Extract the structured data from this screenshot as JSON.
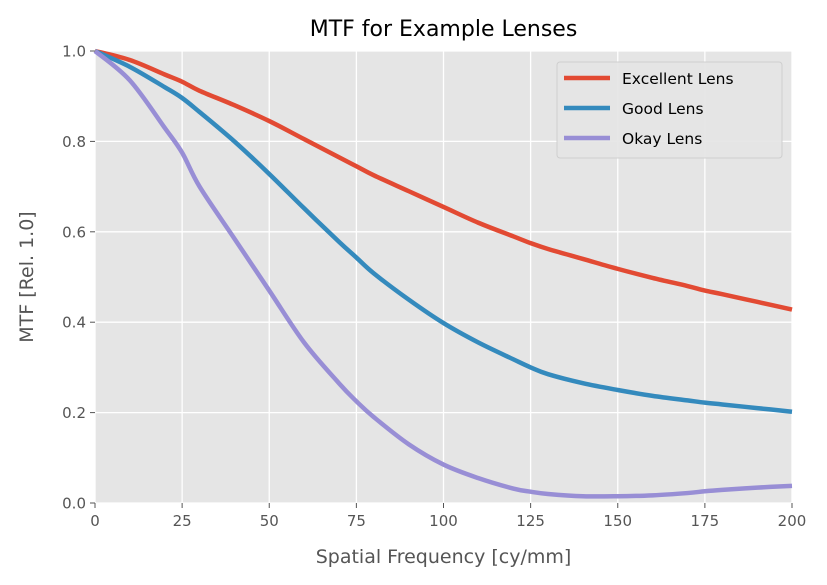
{
  "chart_data": {
    "type": "line",
    "title": "MTF for Example Lenses",
    "xlabel": "Spatial Frequency [cy/mm]",
    "ylabel": "MTF [Rel. 1.0]",
    "xlim": [
      0,
      200
    ],
    "ylim": [
      0,
      1.0
    ],
    "xticks": [
      0,
      25,
      50,
      75,
      100,
      125,
      150,
      175,
      200
    ],
    "yticks": [
      0.0,
      0.2,
      0.4,
      0.6,
      0.8,
      1.0
    ],
    "xtick_labels": [
      "0",
      "25",
      "50",
      "75",
      "100",
      "125",
      "150",
      "175",
      "200"
    ],
    "ytick_labels": [
      "0.0",
      "0.2",
      "0.4",
      "0.6",
      "0.8",
      "1.0"
    ],
    "grid": true,
    "legend_position": "top-right",
    "x": [
      0,
      10,
      20,
      25,
      30,
      40,
      50,
      60,
      70,
      75,
      80,
      90,
      100,
      110,
      120,
      125,
      130,
      140,
      150,
      160,
      170,
      175,
      180,
      190,
      200
    ],
    "series": [
      {
        "name": "Excellent Lens",
        "color": "#E24A33",
        "values": [
          1.0,
          0.98,
          0.948,
          0.932,
          0.912,
          0.88,
          0.845,
          0.805,
          0.765,
          0.745,
          0.725,
          0.69,
          0.655,
          0.62,
          0.59,
          0.575,
          0.562,
          0.54,
          0.518,
          0.498,
          0.48,
          0.47,
          0.462,
          0.445,
          0.428
        ]
      },
      {
        "name": "Good Lens",
        "color": "#348ABD",
        "values": [
          1.0,
          0.965,
          0.92,
          0.896,
          0.865,
          0.8,
          0.728,
          0.652,
          0.578,
          0.543,
          0.508,
          0.45,
          0.398,
          0.355,
          0.318,
          0.3,
          0.285,
          0.265,
          0.25,
          0.237,
          0.227,
          0.222,
          0.218,
          0.21,
          0.202
        ]
      },
      {
        "name": "Okay Lens",
        "color": "#988ED5",
        "values": [
          1.0,
          0.935,
          0.83,
          0.775,
          0.7,
          0.585,
          0.47,
          0.355,
          0.265,
          0.225,
          0.19,
          0.13,
          0.085,
          0.055,
          0.032,
          0.025,
          0.02,
          0.015,
          0.015,
          0.017,
          0.022,
          0.026,
          0.029,
          0.034,
          0.038
        ]
      }
    ]
  },
  "colors": {
    "plot_background": "#E5E5E5",
    "grid": "#FFFFFF",
    "tick_text": "#555555"
  }
}
